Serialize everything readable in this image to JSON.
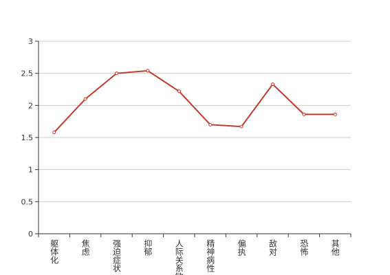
{
  "chart_data": {
    "type": "line",
    "categories": [
      "躯体化",
      "焦虑",
      "强迫症状",
      "抑郁",
      "人际关系敏感",
      "精神病性",
      "偏执",
      "敌对",
      "恐怖",
      "其他"
    ],
    "values": [
      1.58,
      2.1,
      2.5,
      2.54,
      2.22,
      1.7,
      1.67,
      2.33,
      1.86,
      1.86
    ],
    "color": "#c0392b",
    "ylim": [
      0,
      3
    ],
    "yticks": [
      0,
      0.5,
      1,
      1.5,
      2,
      2.5,
      3
    ],
    "grid": true
  }
}
